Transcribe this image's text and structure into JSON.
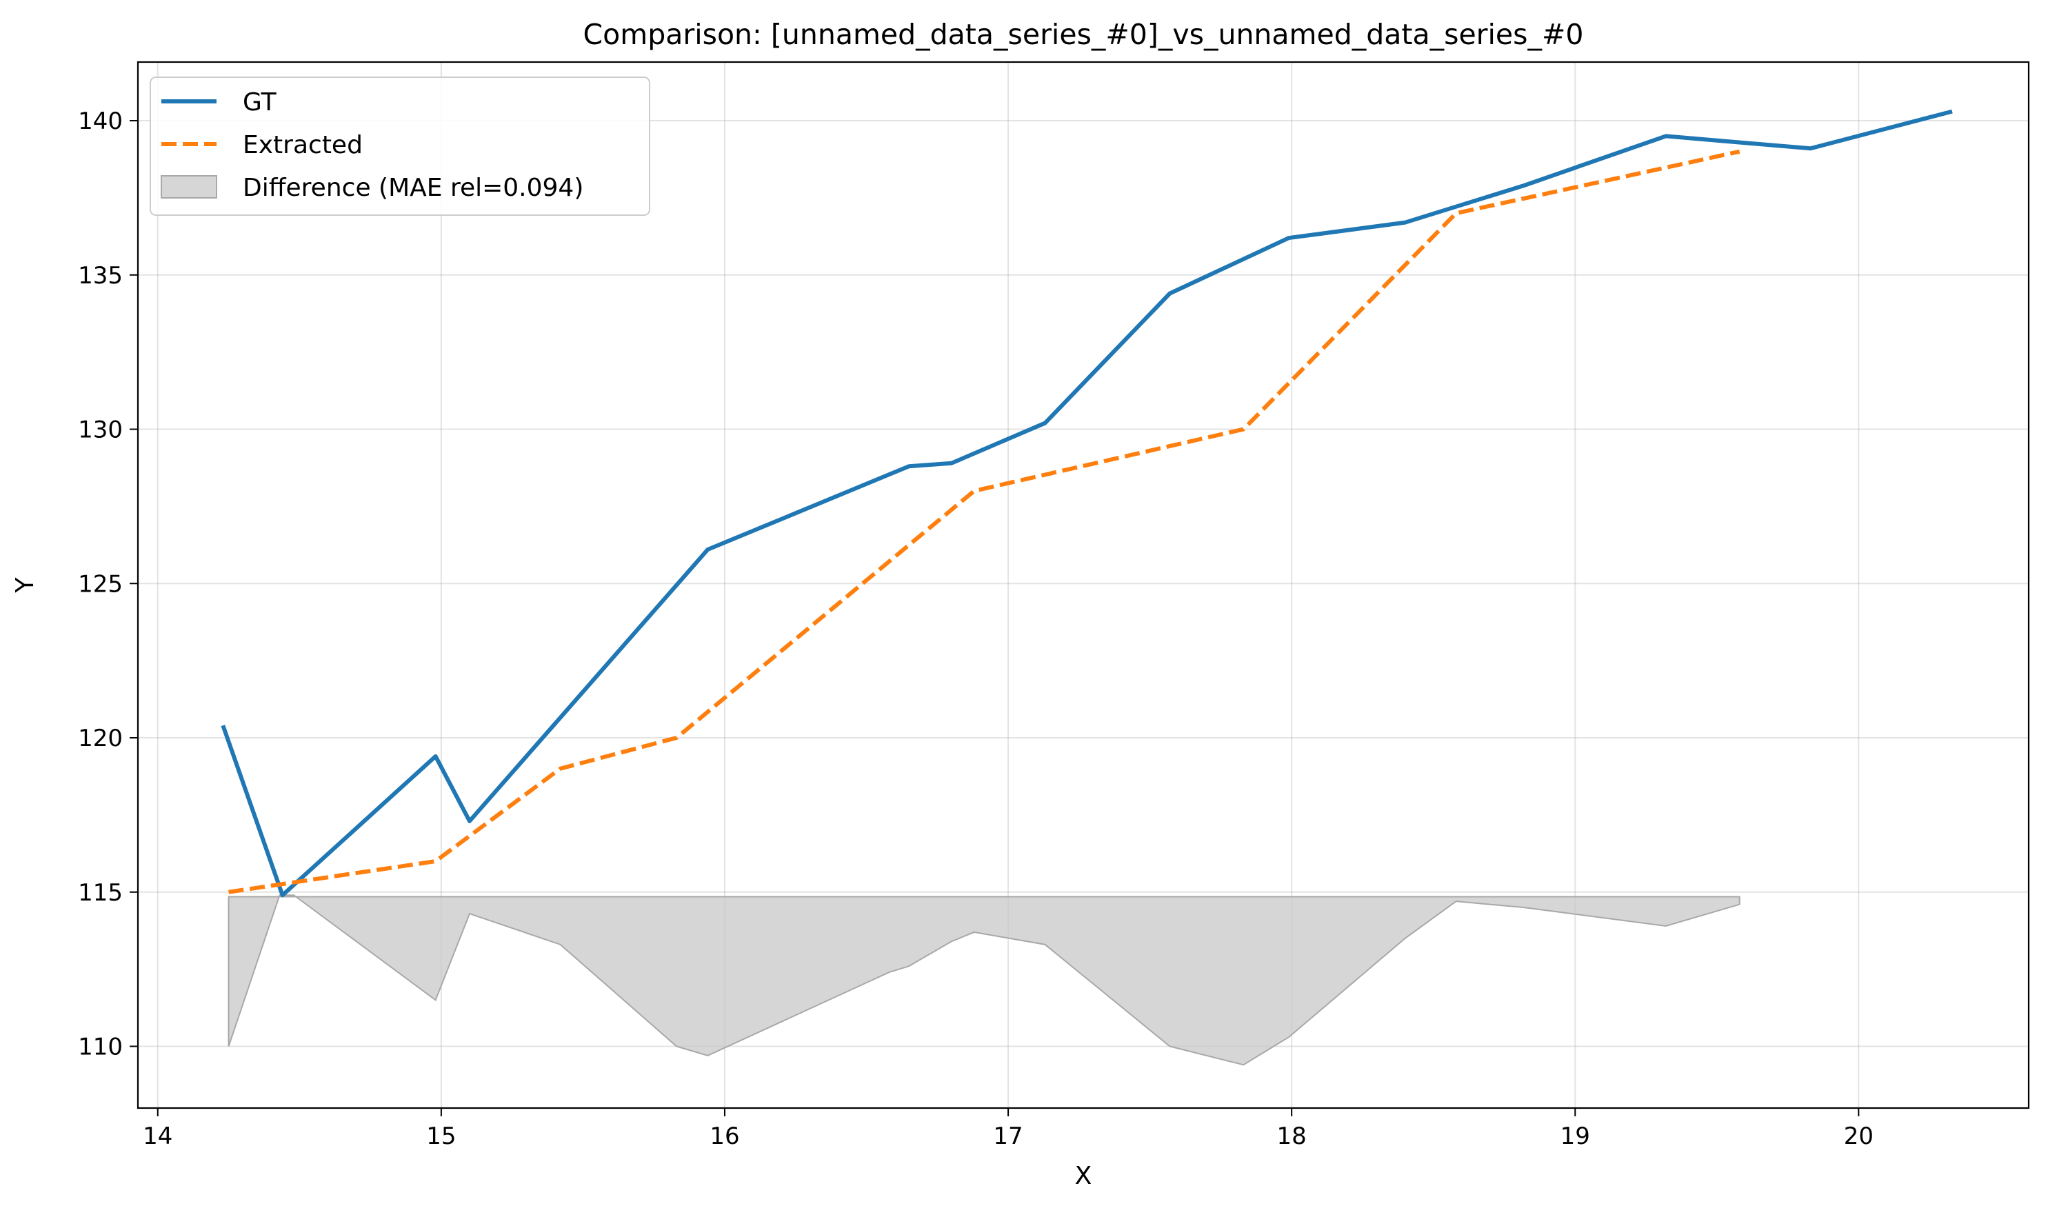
{
  "chart_data": {
    "type": "line",
    "title": "Comparison: [unnamed_data_series_#0]_vs_unnamed_data_series_#0",
    "xlabel": "X",
    "ylabel": "Y",
    "xlim": [
      13.93,
      20.6
    ],
    "ylim": [
      108.0,
      141.9
    ],
    "xticks": [
      14,
      15,
      16,
      17,
      18,
      19,
      20
    ],
    "yticks": [
      110,
      115,
      120,
      125,
      130,
      135,
      140
    ],
    "grid": true,
    "legend_position": "top-left",
    "series": [
      {
        "name": "GT",
        "style": "solid",
        "color": "#1f77b4",
        "points": [
          [
            14.23,
            120.4
          ],
          [
            14.44,
            114.9
          ],
          [
            14.98,
            119.4
          ],
          [
            15.1,
            117.3
          ],
          [
            15.94,
            126.1
          ],
          [
            16.65,
            128.8
          ],
          [
            16.8,
            128.9
          ],
          [
            17.13,
            130.2
          ],
          [
            17.57,
            134.4
          ],
          [
            17.99,
            136.2
          ],
          [
            18.4,
            136.7
          ],
          [
            18.82,
            137.9
          ],
          [
            19.32,
            139.5
          ],
          [
            19.83,
            139.1
          ],
          [
            20.33,
            140.3
          ]
        ]
      },
      {
        "name": "Extracted",
        "style": "dashed",
        "color": "#ff7f0e",
        "points": [
          [
            14.25,
            115.0
          ],
          [
            14.98,
            116.0
          ],
          [
            15.42,
            119.0
          ],
          [
            15.83,
            120.0
          ],
          [
            16.88,
            128.0
          ],
          [
            17.83,
            130.0
          ],
          [
            18.58,
            137.0
          ],
          [
            19.58,
            139.0
          ]
        ]
      },
      {
        "name": "Difference (MAE rel=0.094)",
        "style": "fill",
        "color": "#c8c8c8",
        "baseline": 114.85,
        "points": [
          [
            14.25,
            110.0
          ],
          [
            14.43,
            114.9
          ],
          [
            14.48,
            114.9
          ],
          [
            14.98,
            111.5
          ],
          [
            15.1,
            114.3
          ],
          [
            15.42,
            113.3
          ],
          [
            15.83,
            110.0
          ],
          [
            15.94,
            109.7
          ],
          [
            16.58,
            112.4
          ],
          [
            16.65,
            112.6
          ],
          [
            16.8,
            113.4
          ],
          [
            16.88,
            113.7
          ],
          [
            17.13,
            113.3
          ],
          [
            17.57,
            110.0
          ],
          [
            17.83,
            109.4
          ],
          [
            17.99,
            110.3
          ],
          [
            18.4,
            113.5
          ],
          [
            18.58,
            114.7
          ],
          [
            18.82,
            114.5
          ],
          [
            19.32,
            113.9
          ],
          [
            19.58,
            114.6
          ]
        ]
      }
    ]
  }
}
